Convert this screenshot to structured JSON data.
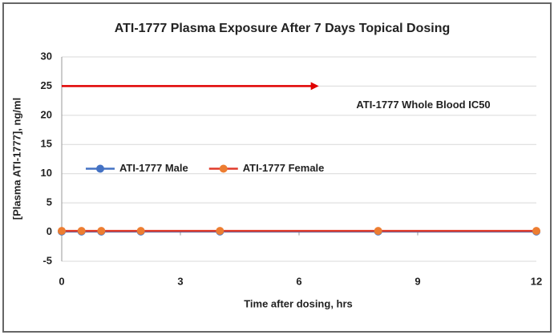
{
  "chart_data": {
    "type": "line",
    "title": "ATI-1777 Plasma Exposure After 7 Days Topical Dosing",
    "x_label": "Time after dosing, hrs",
    "y_label": "[Plasma ATI-1777], ng/ml",
    "x": [
      0,
      0.5,
      1,
      2,
      4,
      8,
      12
    ],
    "series": [
      {
        "name": "ATI-1777 Male",
        "color": "#4472c4",
        "line_color": "#4472c4",
        "values": [
          0.1,
          0.1,
          0.1,
          0.1,
          0.1,
          0.1,
          0.1
        ]
      },
      {
        "name": "ATI-1777 Female",
        "color": "#ed7d31",
        "line_color": "#e03a2a",
        "values": [
          0.2,
          0.2,
          0.2,
          0.2,
          0.2,
          0.2,
          0.2
        ]
      }
    ],
    "xlim": [
      0,
      12
    ],
    "xticks": [
      0,
      3,
      6,
      9,
      12
    ],
    "ylim": [
      -5,
      30
    ],
    "yticks": [
      -5,
      0,
      5,
      10,
      15,
      20,
      25,
      30
    ],
    "grid": true,
    "legend": "center-left",
    "annotations": [
      {
        "text": "ATI-1777 Whole Blood IC50",
        "y": 25,
        "x": [
          0,
          6.5
        ],
        "color": "#e00000"
      }
    ]
  }
}
